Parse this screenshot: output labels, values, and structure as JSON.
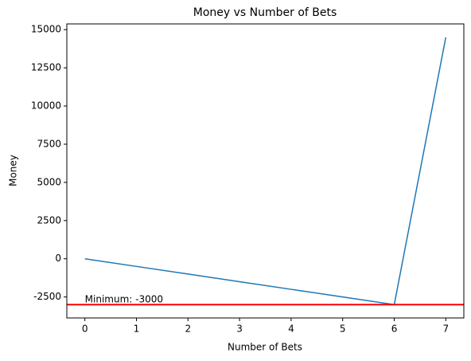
{
  "chart_data": {
    "type": "line",
    "title": "Money vs Number of Bets",
    "x_label": "Number of Bets",
    "y_label": "Money",
    "x": [
      0,
      1,
      2,
      3,
      4,
      5,
      6,
      7
    ],
    "values": [
      0,
      -500,
      -1000,
      -1500,
      -2000,
      -2500,
      -3000,
      14500
    ],
    "color": "#1f77b4",
    "hline": {
      "value": -3000,
      "color": "#ff0000"
    },
    "annotation": "Minimum: -3000",
    "xlim": [
      -0.35,
      7.35
    ],
    "ylim": [
      -3875,
      15375
    ],
    "xticks": [
      0,
      1,
      2,
      3,
      4,
      5,
      6,
      7
    ],
    "yticks": [
      -2500,
      0,
      2500,
      5000,
      7500,
      10000,
      12500,
      15000
    ],
    "grid": false
  }
}
